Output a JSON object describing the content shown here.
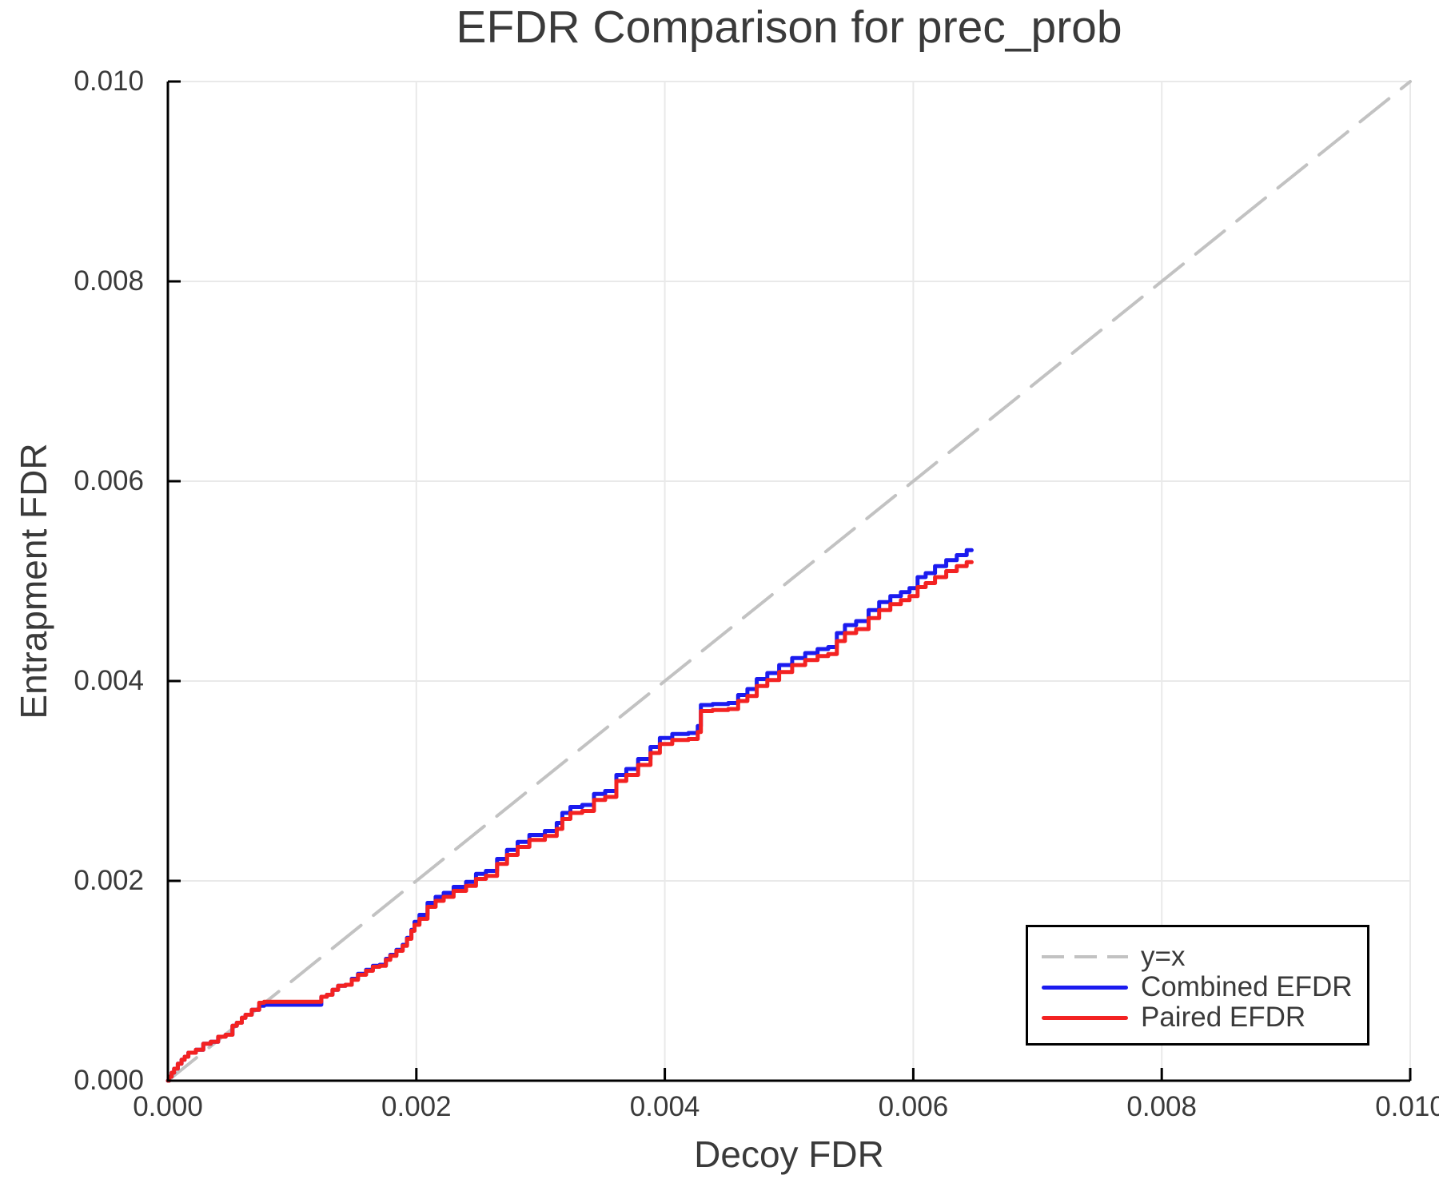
{
  "chart_data": {
    "type": "line",
    "title": "EFDR Comparison for prec_prob",
    "xlabel": "Decoy FDR",
    "ylabel": "Entrapment FDR",
    "xlim": [
      0.0,
      0.01
    ],
    "ylim": [
      0.0,
      0.01
    ],
    "grid": true,
    "legend_position": "bottom-right",
    "x_ticks": [
      0.0,
      0.002,
      0.004,
      0.006,
      0.008,
      0.01
    ],
    "y_ticks": [
      0.0,
      0.002,
      0.004,
      0.006,
      0.008,
      0.01
    ],
    "x_tick_labels": [
      "0.000",
      "0.002",
      "0.004",
      "0.006",
      "0.008",
      "0.010"
    ],
    "y_tick_labels": [
      "0.000",
      "0.002",
      "0.004",
      "0.006",
      "0.008",
      "0.010"
    ],
    "colors": {
      "grid": "#e9e9e9",
      "spine": "#000000",
      "text": "#3a3a3a",
      "identity": "#c2c2c2",
      "combined": "#1b1bef",
      "paired": "#f32222"
    },
    "series": [
      {
        "name": "y=x",
        "style": "dashed",
        "color": "#c2c2c2",
        "width": 4,
        "dash": [
          46,
          20
        ],
        "step": false,
        "points": [
          [
            0.0,
            0.0
          ],
          [
            0.01,
            0.01
          ]
        ]
      },
      {
        "name": "Combined EFDR",
        "style": "solid",
        "color": "#1b1bef",
        "width": 5,
        "step": true,
        "points": [
          [
            0,
            0
          ],
          [
            2e-05,
            4e-05
          ],
          [
            4e-05,
            8e-05
          ],
          [
            6e-05,
            0.00012
          ],
          [
            0.0001,
            0.00017
          ],
          [
            0.00012,
            0.00021
          ],
          [
            0.00015,
            0.00024
          ],
          [
            0.00018,
            0.00028
          ],
          [
            0.00027,
            0.00031
          ],
          [
            0.0003,
            0.00037
          ],
          [
            0.00039,
            0.00039
          ],
          [
            0.00042,
            0.00044
          ],
          [
            0.00051,
            0.00046
          ],
          [
            0.00053,
            0.00055
          ],
          [
            0.00058,
            0.00058
          ],
          [
            0.00061,
            0.00063
          ],
          [
            0.00064,
            0.00066
          ],
          [
            0.00071,
            0.00071
          ],
          [
            0.00076,
            0.00075
          ],
          [
            0.00079,
            0.00076
          ],
          [
            0.00122,
            0.00076
          ],
          [
            0.00125,
            0.00084
          ],
          [
            0.00131,
            0.00086
          ],
          [
            0.00134,
            0.00091
          ],
          [
            0.0014,
            0.00095
          ],
          [
            0.00146,
            0.00096
          ],
          [
            0.0015,
            0.00102
          ],
          [
            0.00156,
            0.00107
          ],
          [
            0.00163,
            0.00111
          ],
          [
            0.00167,
            0.00115
          ],
          [
            0.00174,
            0.00116
          ],
          [
            0.00177,
            0.00122
          ],
          [
            0.00181,
            0.00126
          ],
          [
            0.00187,
            0.00131
          ],
          [
            0.00191,
            0.00136
          ],
          [
            0.00194,
            0.00143
          ],
          [
            0.00198,
            0.00151
          ],
          [
            0.00199,
            0.00159
          ],
          [
            0.00206,
            0.00166
          ],
          [
            0.00212,
            0.00178
          ],
          [
            0.00219,
            0.00184
          ],
          [
            0.00225,
            0.00188
          ],
          [
            0.00235,
            0.00194
          ],
          [
            0.00245,
            0.00199
          ],
          [
            0.00251,
            0.00207
          ],
          [
            0.00261,
            0.0021
          ],
          [
            0.00269,
            0.00222
          ],
          [
            0.00277,
            0.00231
          ],
          [
            0.00286,
            0.00239
          ],
          [
            0.00296,
            0.00246
          ],
          [
            0.00311,
            0.0025
          ],
          [
            0.00315,
            0.00258
          ],
          [
            0.0032,
            0.00268
          ],
          [
            0.00328,
            0.00274
          ],
          [
            0.00339,
            0.00276
          ],
          [
            0.00347,
            0.00287
          ],
          [
            0.00357,
            0.0029
          ],
          [
            0.00365,
            0.00306
          ],
          [
            0.00373,
            0.00312
          ],
          [
            0.00384,
            0.00322
          ],
          [
            0.00393,
            0.00334
          ],
          [
            0.00399,
            0.00343
          ],
          [
            0.00413,
            0.00347
          ],
          [
            0.00425,
            0.00348
          ],
          [
            0.00428,
            0.00355
          ],
          [
            0.0043,
            0.00376
          ],
          [
            0.00447,
            0.00377
          ],
          [
            0.00455,
            0.00378
          ],
          [
            0.00463,
            0.00386
          ],
          [
            0.0047,
            0.00392
          ],
          [
            0.00478,
            0.00402
          ],
          [
            0.00487,
            0.00408
          ],
          [
            0.00497,
            0.00416
          ],
          [
            0.00508,
            0.00423
          ],
          [
            0.00518,
            0.00428
          ],
          [
            0.00528,
            0.00432
          ],
          [
            0.00535,
            0.00434
          ],
          [
            0.00542,
            0.00448
          ],
          [
            0.00548,
            0.00456
          ],
          [
            0.0056,
            0.0046
          ],
          [
            0.00568,
            0.00471
          ],
          [
            0.00577,
            0.00479
          ],
          [
            0.00586,
            0.00485
          ],
          [
            0.00594,
            0.00489
          ],
          [
            0.006,
            0.00493
          ],
          [
            0.00607,
            0.00504
          ],
          [
            0.00613,
            0.00508
          ],
          [
            0.00622,
            0.00515
          ],
          [
            0.00631,
            0.00521
          ],
          [
            0.00639,
            0.00526
          ],
          [
            0.00647,
            0.00531
          ]
        ]
      },
      {
        "name": "Paired EFDR",
        "style": "solid",
        "color": "#f32222",
        "width": 5,
        "step": true,
        "points": [
          [
            0,
            0
          ],
          [
            2e-05,
            4e-05
          ],
          [
            4e-05,
            8e-05
          ],
          [
            6e-05,
            0.00012
          ],
          [
            0.0001,
            0.00017
          ],
          [
            0.00012,
            0.00021
          ],
          [
            0.00015,
            0.00024
          ],
          [
            0.00018,
            0.00028
          ],
          [
            0.00027,
            0.00031
          ],
          [
            0.0003,
            0.00037
          ],
          [
            0.00039,
            0.00039
          ],
          [
            0.00042,
            0.00044
          ],
          [
            0.00051,
            0.00046
          ],
          [
            0.00053,
            0.00055
          ],
          [
            0.00058,
            0.00058
          ],
          [
            0.00061,
            0.00063
          ],
          [
            0.00064,
            0.00066
          ],
          [
            0.00071,
            0.00071
          ],
          [
            0.00076,
            0.00078
          ],
          [
            0.00079,
            0.00079
          ],
          [
            0.00122,
            0.00079
          ],
          [
            0.00125,
            0.00084
          ],
          [
            0.00131,
            0.00086
          ],
          [
            0.00134,
            0.00091
          ],
          [
            0.0014,
            0.00095
          ],
          [
            0.00146,
            0.00096
          ],
          [
            0.0015,
            0.00101
          ],
          [
            0.00156,
            0.00106
          ],
          [
            0.00163,
            0.0011
          ],
          [
            0.00167,
            0.00114
          ],
          [
            0.00174,
            0.00115
          ],
          [
            0.00177,
            0.00121
          ],
          [
            0.00181,
            0.00125
          ],
          [
            0.00187,
            0.0013
          ],
          [
            0.00191,
            0.00135
          ],
          [
            0.00194,
            0.00142
          ],
          [
            0.00198,
            0.0015
          ],
          [
            0.00199,
            0.00156
          ],
          [
            0.00206,
            0.00162
          ],
          [
            0.00212,
            0.00174
          ],
          [
            0.00219,
            0.0018
          ],
          [
            0.00225,
            0.00184
          ],
          [
            0.00235,
            0.0019
          ],
          [
            0.00245,
            0.00195
          ],
          [
            0.00251,
            0.00202
          ],
          [
            0.00261,
            0.00205
          ],
          [
            0.00269,
            0.00217
          ],
          [
            0.00277,
            0.00226
          ],
          [
            0.00286,
            0.00234
          ],
          [
            0.00296,
            0.00241
          ],
          [
            0.00311,
            0.00245
          ],
          [
            0.00315,
            0.00252
          ],
          [
            0.0032,
            0.00262
          ],
          [
            0.00328,
            0.00268
          ],
          [
            0.00339,
            0.0027
          ],
          [
            0.00347,
            0.00281
          ],
          [
            0.00357,
            0.00284
          ],
          [
            0.00365,
            0.003
          ],
          [
            0.00373,
            0.00306
          ],
          [
            0.00384,
            0.00316
          ],
          [
            0.00393,
            0.00328
          ],
          [
            0.00399,
            0.00337
          ],
          [
            0.00413,
            0.00341
          ],
          [
            0.00425,
            0.00342
          ],
          [
            0.00428,
            0.00349
          ],
          [
            0.0043,
            0.0037
          ],
          [
            0.00447,
            0.00371
          ],
          [
            0.00455,
            0.00372
          ],
          [
            0.00463,
            0.0038
          ],
          [
            0.0047,
            0.00385
          ],
          [
            0.00478,
            0.00395
          ],
          [
            0.00487,
            0.00401
          ],
          [
            0.00497,
            0.00409
          ],
          [
            0.00508,
            0.00416
          ],
          [
            0.00518,
            0.00421
          ],
          [
            0.00528,
            0.00425
          ],
          [
            0.00535,
            0.00427
          ],
          [
            0.00542,
            0.0044
          ],
          [
            0.00548,
            0.00448
          ],
          [
            0.0056,
            0.00452
          ],
          [
            0.00568,
            0.00463
          ],
          [
            0.00577,
            0.00471
          ],
          [
            0.00586,
            0.00477
          ],
          [
            0.00594,
            0.00481
          ],
          [
            0.006,
            0.00485
          ],
          [
            0.00607,
            0.00494
          ],
          [
            0.00613,
            0.00498
          ],
          [
            0.00622,
            0.00504
          ],
          [
            0.00631,
            0.0051
          ],
          [
            0.00639,
            0.00515
          ],
          [
            0.00647,
            0.00519
          ]
        ]
      }
    ]
  }
}
